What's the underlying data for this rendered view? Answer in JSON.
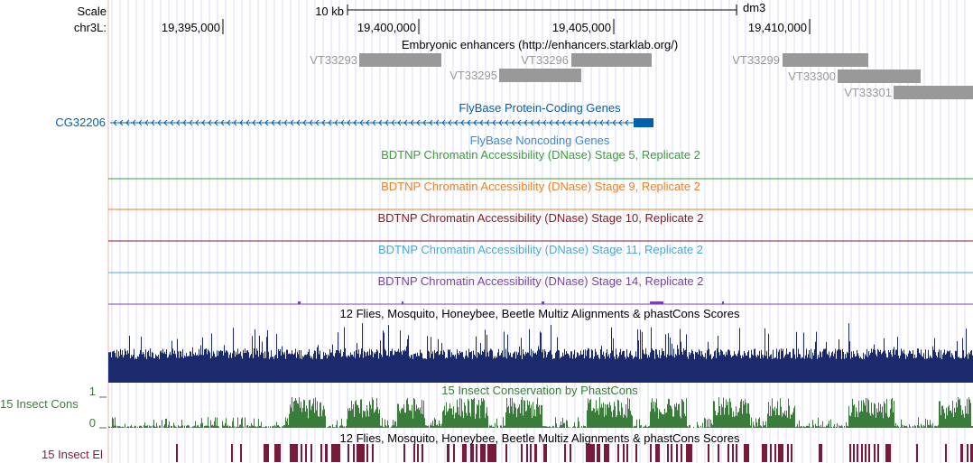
{
  "ruler": {
    "scale_label": "Scale",
    "scale_bar_text": "10 kb",
    "assembly": "dm3",
    "chrom_label": "chr3L:",
    "positions": [
      "19,395,000",
      "19,400,000",
      "19,405,000",
      "19,410,000"
    ]
  },
  "tracks": {
    "enhancers": {
      "title": "Embryonic enhancers (http://enhancers.starklab.org/)",
      "color": "#999999",
      "items": [
        "VT33293",
        "VT33295",
        "VT33296",
        "VT33299",
        "VT33300",
        "VT33301"
      ]
    },
    "genes": {
      "title": "FlyBase Protein-Coding Genes",
      "color": "#0060b0",
      "gene_name": "CG32206"
    },
    "noncoding": {
      "title": "FlyBase Noncoding Genes",
      "color": "#3a8ad0"
    },
    "dnase": [
      {
        "title": "BDTNP Chromatin Accessibility (DNase) Stage 5, Replicate 2",
        "color": "#3aa03a"
      },
      {
        "title": "BDTNP Chromatin Accessibility (DNase) Stage 9, Replicate 2",
        "color": "#e8822a"
      },
      {
        "title": "BDTNP Chromatin Accessibility (DNase) Stage 10, Replicate 2",
        "color": "#8b1a2a"
      },
      {
        "title": "BDTNP Chromatin Accessibility (DNase) Stage 11, Replicate 2",
        "color": "#4aa8d8"
      },
      {
        "title": "BDTNP Chromatin Accessibility (DNase) Stage 14, Replicate 2",
        "color": "#7a40b0"
      }
    ],
    "multiz": {
      "title": "12 Flies, Mosquito, Honeybee, Beetle Multiz Alignments & phastCons Scores",
      "color": "#1a2a6c"
    },
    "phastcons": {
      "title": "15 Insect Conservation by PhastCons",
      "side_label": "15 Insect Cons",
      "axis_max": "1",
      "axis_min": "0",
      "color": "#3a7d3a"
    },
    "elements": {
      "title": "12 Flies, Mosquito, Honeybee, Beetle Multiz Alignments & phastCons Scores",
      "side_label": "15 Insect El",
      "color": "#7a1a3a"
    }
  }
}
